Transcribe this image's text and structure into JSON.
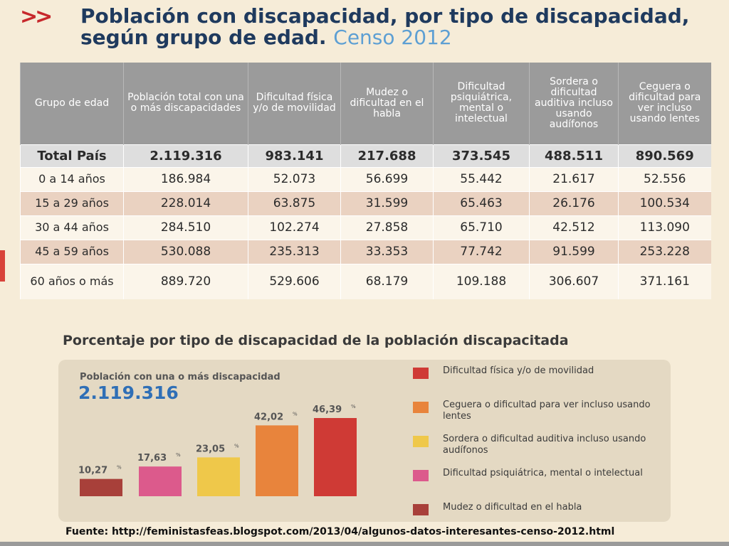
{
  "header": {
    "arrows": ">>",
    "title_line1": "Población con discapacidad, por tipo de discapacidad,",
    "title_line2": "según grupo de edad.",
    "title_sub": "Censo 2012"
  },
  "table": {
    "columns": [
      "Grupo de edad",
      "Población total con una o más discapacidades",
      "Dificultad física y/o de movilidad",
      "Mudez o dificultad en el habla",
      "Dificultad psiquiátrica, mental o intelectual",
      "Sordera o dificultad auditiva incluso usando audífonos",
      "Ceguera o dificultad para ver incluso usando lentes"
    ],
    "rows": [
      [
        "Total País",
        "2.119.316",
        "983.141",
        "217.688",
        "373.545",
        "488.511",
        "890.569"
      ],
      [
        "0 a 14 años",
        "186.984",
        "52.073",
        "56.699",
        "55.442",
        "21.617",
        "52.556"
      ],
      [
        "15 a 29 años",
        "228.014",
        "63.875",
        "31.599",
        "65.463",
        "26.176",
        "100.534"
      ],
      [
        "30 a 44 años",
        "284.510",
        "102.274",
        "27.858",
        "65.710",
        "42.512",
        "113.090"
      ],
      [
        "45 a 59 años",
        "530.088",
        "235.313",
        "33.353",
        "77.742",
        "91.599",
        "253.228"
      ],
      [
        "60 años o más",
        "889.720",
        "529.606",
        "68.179",
        "109.188",
        "306.607",
        "371.161"
      ]
    ]
  },
  "chart_heading": "Porcentaje por tipo de discapacidad de la población discapacitada",
  "total_label": "Población con una o más discapacidad",
  "total_value": "2.119.316",
  "chart_data": {
    "type": "bar",
    "title": "Porcentaje por tipo de discapacidad de la población discapacitada",
    "categories": [
      "Mudez o dificultad en el habla",
      "Dificultad psiquiátrica, mental o intelectual",
      "Sordera o dificultad auditiva incluso usando audífonos",
      "Ceguera o dificultad para ver incluso usando lentes",
      "Dificultad física y/o de movilidad"
    ],
    "values": [
      10.27,
      17.63,
      23.05,
      42.02,
      46.39
    ],
    "value_labels": [
      "10,27",
      "17,63",
      "23,05",
      "42,02",
      "46,39"
    ],
    "unit": "%",
    "colors": [
      "#a8403a",
      "#dc5a8c",
      "#efc84a",
      "#e8843c",
      "#cf3a35"
    ],
    "legend_position": "right",
    "ylim": [
      0,
      46.39
    ],
    "grid": false
  },
  "legend": [
    {
      "label": "Dificultad física y/o de movilidad",
      "color": "#cf3a35"
    },
    {
      "label": "Ceguera o dificultad para ver incluso usando lentes",
      "color": "#e8843c"
    },
    {
      "label": "Sordera o dificultad auditiva incluso usando audífonos",
      "color": "#efc84a"
    },
    {
      "label": "Dificultad psiquiátrica, mental o intelectual",
      "color": "#dc5a8c"
    },
    {
      "label": "Mudez o dificultad en el habla",
      "color": "#a8403a"
    }
  ],
  "footer": "Fuente: http://feministasfeas.blogspot.com/2013/04/algunos-datos-interesantes-censo-2012.html"
}
